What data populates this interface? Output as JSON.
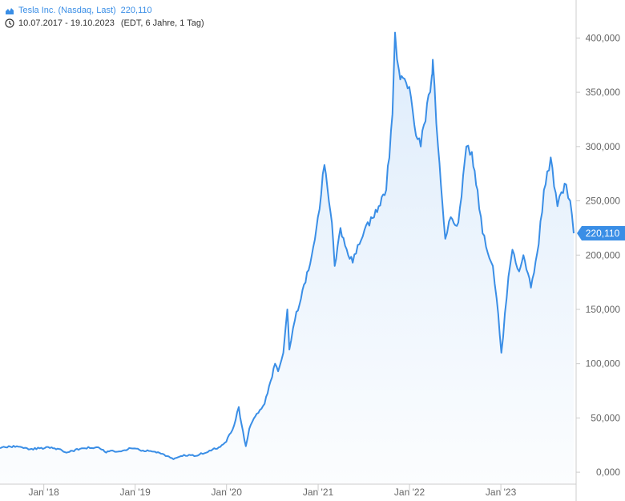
{
  "legend": {
    "series_label": "Tesla Inc. (Nasdaq, Last)",
    "last_value": "220,110",
    "date_range": "10.07.2017 - 19.10.2023",
    "range_note": "(EDT, 6 Jahre, 1 Tag)",
    "series_icon": "area-chart-icon",
    "range_icon": "clock-icon"
  },
  "colors": {
    "line": "#3a8ee6",
    "fill": "#dcebfb",
    "badge": "#3a8ee6",
    "axis": "#cccccc"
  },
  "chart_data": {
    "type": "area",
    "x_start": "2017-07-10",
    "x_end": "2023-10-19",
    "x_ticks": [
      {
        "label": "Jan '18",
        "x": "2018-01-01"
      },
      {
        "label": "Jan '19",
        "x": "2019-01-01"
      },
      {
        "label": "Jan '20",
        "x": "2020-01-01"
      },
      {
        "label": "Jan '21",
        "x": "2021-01-01"
      },
      {
        "label": "Jan '22",
        "x": "2022-01-01"
      },
      {
        "label": "Jan '23",
        "x": "2023-01-01"
      }
    ],
    "y_ticks": [
      {
        "label": "0,000",
        "y": 0
      },
      {
        "label": "50,000",
        "y": 50
      },
      {
        "label": "100,000",
        "y": 100
      },
      {
        "label": "150,000",
        "y": 150
      },
      {
        "label": "200,000",
        "y": 200
      },
      {
        "label": "250,000",
        "y": 250
      },
      {
        "label": "300,000",
        "y": 300
      },
      {
        "label": "350,000",
        "y": 350
      },
      {
        "label": "400,000",
        "y": 400
      }
    ],
    "ylim": [
      -11,
      435
    ],
    "last_badge": {
      "label": "220,110",
      "y": 220.11
    },
    "series": [
      {
        "x": [
          "2017-07-10",
          "2017-08-01",
          "2017-09-15",
          "2017-11-01",
          "2017-12-15",
          "2018-02-01",
          "2018-03-15",
          "2018-04-01",
          "2018-06-01",
          "2018-08-07",
          "2018-09-07",
          "2018-10-01",
          "2018-10-24",
          "2018-12-15",
          "2019-02-01",
          "2019-03-15",
          "2019-04-20",
          "2019-06-03",
          "2019-07-15",
          "2019-09-01",
          "2019-10-25",
          "2019-12-01",
          "2019-12-31",
          "2020-01-31",
          "2020-02-19",
          "2020-03-01",
          "2020-03-18",
          "2020-04-01",
          "2020-05-01",
          "2020-06-01",
          "2020-07-13",
          "2020-07-25",
          "2020-08-15",
          "2020-08-31",
          "2020-09-08",
          "2020-09-30",
          "2020-11-30",
          "2020-12-31",
          "2021-01-26",
          "2021-02-25",
          "2021-03-08",
          "2021-03-31",
          "2021-05-01",
          "2021-05-19",
          "2021-06-15",
          "2021-07-31",
          "2021-08-31",
          "2021-09-30",
          "2021-10-25",
          "2021-11-04",
          "2021-11-20",
          "2021-11-30",
          "2021-12-31",
          "2022-01-27",
          "2022-02-15",
          "2022-03-31",
          "2022-04-04",
          "2022-04-25",
          "2022-05-24",
          "2022-06-15",
          "2022-07-15",
          "2022-08-16",
          "2022-09-07",
          "2022-09-30",
          "2022-10-20",
          "2022-11-30",
          "2022-12-15",
          "2023-01-03",
          "2023-01-31",
          "2023-02-16",
          "2023-03-15",
          "2023-04-01",
          "2023-05-01",
          "2023-06-01",
          "2023-06-22",
          "2023-07-19",
          "2023-08-15",
          "2023-08-31",
          "2023-09-19",
          "2023-10-05",
          "2023-10-19"
        ],
        "values": [
          22,
          23,
          24,
          21,
          22,
          23,
          20,
          18,
          22,
          23,
          18,
          20,
          19,
          22,
          20,
          19,
          17,
          12,
          16,
          15,
          20,
          23,
          28,
          43,
          60,
          44,
          24,
          40,
          54,
          63,
          100,
          93,
          110,
          150,
          113,
          140,
          192,
          235,
          283,
          230,
          190,
          225,
          200,
          193,
          210,
          235,
          245,
          260,
          330,
          405,
          370,
          365,
          355,
          310,
          300,
          365,
          380,
          300,
          215,
          235,
          230,
          300,
          295,
          260,
          220,
          190,
          160,
          110,
          180,
          205,
          185,
          200,
          170,
          210,
          260,
          290,
          245,
          258,
          265,
          250,
          220.11
        ]
      }
    ]
  }
}
